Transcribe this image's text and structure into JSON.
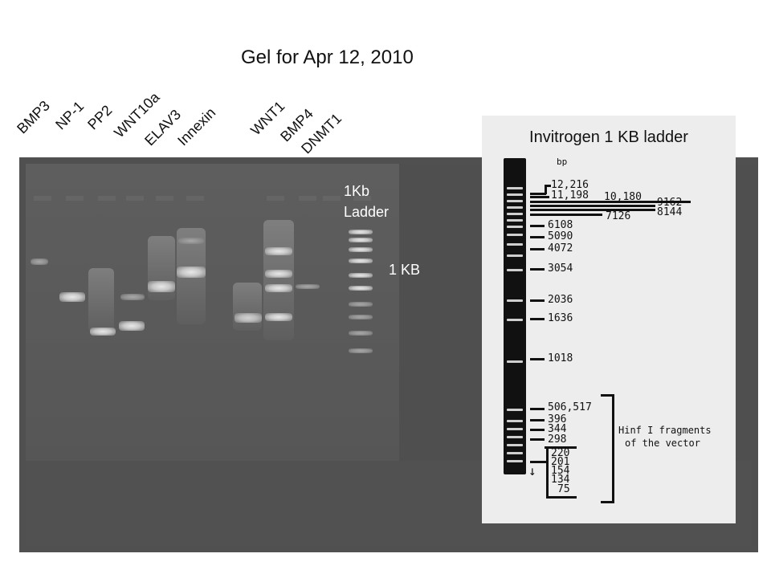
{
  "title": "Gel for Apr 12, 2010",
  "lanes": [
    "BMP3",
    "NP-1",
    "PP2",
    "WNT10a",
    "ELAV3",
    "Innexin",
    "WNT1",
    "BMP4",
    "DNMT1"
  ],
  "gel": {
    "ladder_label_line1": "1Kb",
    "ladder_label_line2": "Ladder",
    "marker_label": "1 KB"
  },
  "ladder_panel": {
    "title": "Invitrogen 1 KB ladder",
    "unit": "bp",
    "sizes": [
      "12,216",
      "11,198",
      "10,180",
      "9162",
      "8144",
      "7126",
      "6108",
      "5090",
      "4072",
      "3054",
      "2036",
      "1636",
      "1018",
      "506,517",
      "396",
      "344",
      "298",
      "220",
      "201",
      "154",
      "134",
      "75"
    ],
    "note_line1": "Hinf I fragments",
    "note_line2": "of the vector"
  }
}
